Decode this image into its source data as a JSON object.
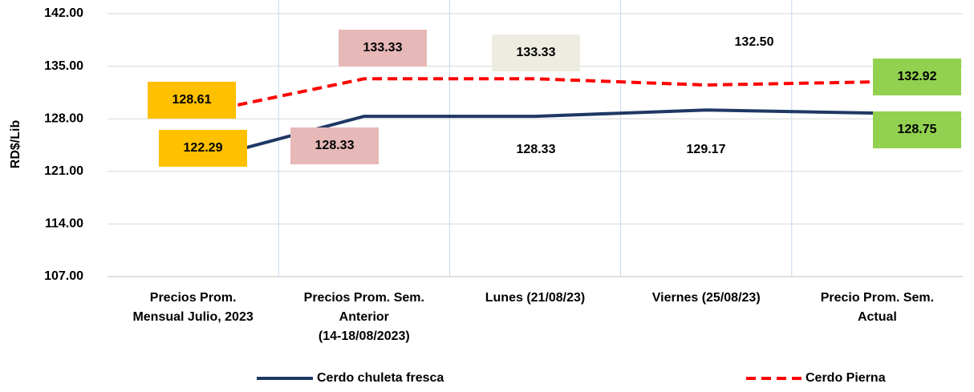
{
  "chart_data": {
    "type": "line",
    "y_label": "RD$/Lib",
    "categories": [
      "Precios Prom.\nMensual Julio, 2023",
      "Precios Prom. Sem.\nAnterior\n(14-18/08/2023)",
      "Lunes  (21/08/23)",
      "Viernes  (25/08/23)",
      "Precio Prom. Sem.\nActual"
    ],
    "series": [
      {
        "name": "Cerdo chuleta fresca",
        "color": "#1f3864",
        "dash": false,
        "values": [
          122.29,
          128.33,
          128.33,
          129.17,
          128.75
        ],
        "value_labels": [
          "122.29",
          "128.33",
          "128.33",
          "129.17",
          "128.75"
        ],
        "label_colors": [
          "#ffc000",
          "#e6b8b7",
          null,
          null,
          "#92d050"
        ]
      },
      {
        "name": "Cerdo Pierna",
        "color": "#ff0000",
        "dash": true,
        "values": [
          128.61,
          133.33,
          133.33,
          132.5,
          132.92
        ],
        "value_labels": [
          "128.61",
          "133.33",
          "133.33",
          "132.50",
          "132.92"
        ],
        "label_colors": [
          "#ffc000",
          "#e6b8b7",
          "#eeece1",
          null,
          "#92d050"
        ]
      }
    ],
    "ylim": [
      107,
      142
    ],
    "yticks": [
      {
        "value": 107,
        "label": "107.00"
      },
      {
        "value": 114,
        "label": "114.00"
      },
      {
        "value": 121,
        "label": "121.00"
      },
      {
        "value": 128,
        "label": "128.00"
      },
      {
        "value": 135,
        "label": "135.00"
      },
      {
        "value": 142,
        "label": "142.00"
      }
    ],
    "grid": true
  }
}
